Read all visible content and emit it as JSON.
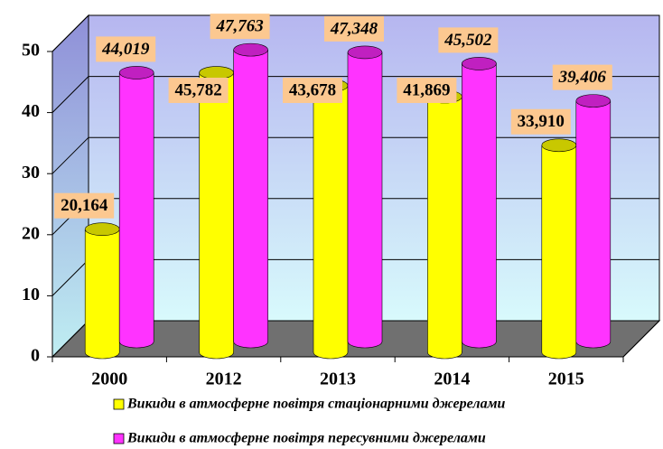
{
  "chart_data": {
    "type": "bar",
    "categories": [
      "2000",
      "2012",
      "2013",
      "2014",
      "2015"
    ],
    "series": [
      {
        "name": "Викиди в атмосферне повітря стаціонарними джерелами",
        "color": "#ffff00",
        "values": [
          20.164,
          45.782,
          43.678,
          41.869,
          33.91
        ],
        "value_labels": [
          "20,164",
          "45,782",
          "43,678",
          "41,869",
          "33,910"
        ]
      },
      {
        "name": "Викиди в атмосферне повітря пересувними джерелами",
        "color": "#ff33ff",
        "values": [
          44.019,
          47.763,
          47.348,
          45.502,
          39.406
        ],
        "value_labels": [
          "44,019",
          "47,763",
          "47,348",
          "45,502",
          "39,406"
        ]
      }
    ],
    "ylim": [
      0,
      50
    ],
    "yticks": [
      0,
      10,
      20,
      30,
      40,
      50
    ],
    "grid": true,
    "legend": "bottom"
  }
}
